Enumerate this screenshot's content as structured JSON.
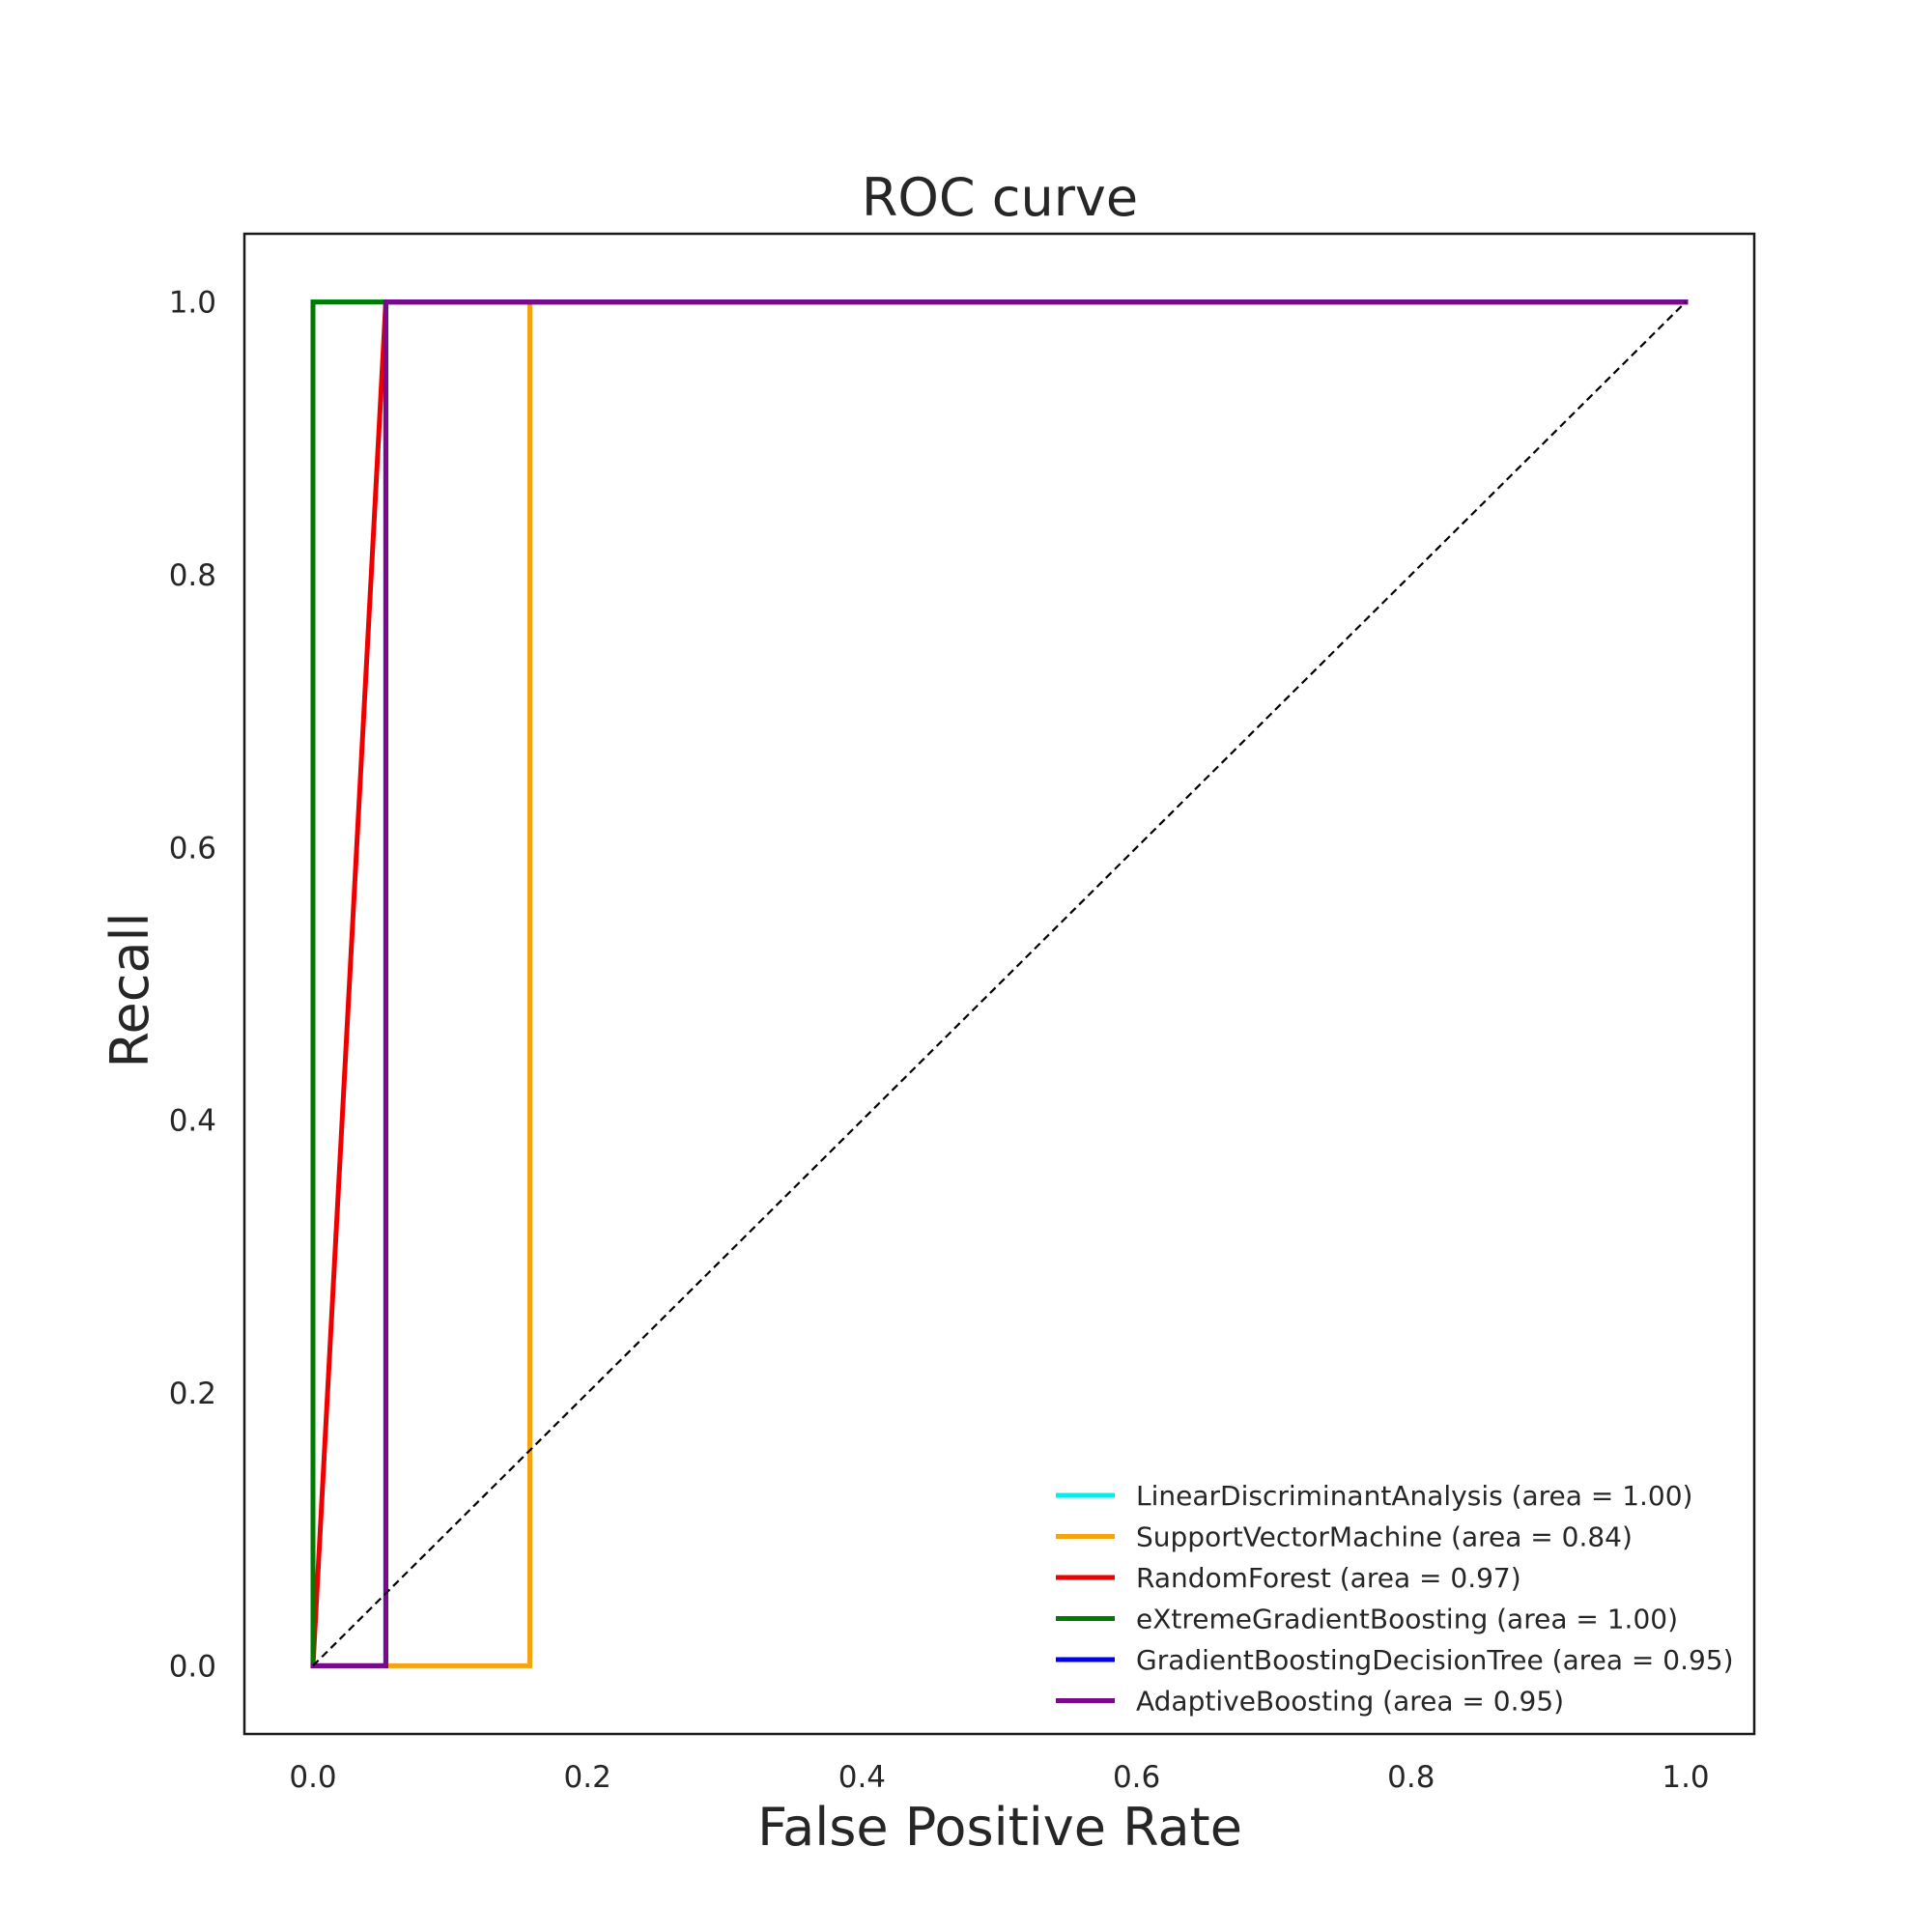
{
  "chart_data": {
    "type": "line",
    "title": "ROC curve",
    "xlabel": "False Positive Rate",
    "ylabel": "Recall",
    "xlim": [
      -0.05,
      1.05
    ],
    "ylim": [
      -0.05,
      1.05
    ],
    "xticks": [
      0.0,
      0.2,
      0.4,
      0.6,
      0.8,
      1.0
    ],
    "xtick_labels": [
      "0.0",
      "0.2",
      "0.4",
      "0.6",
      "0.8",
      "1.0"
    ],
    "yticks": [
      0.0,
      0.2,
      0.4,
      0.6,
      0.8,
      1.0
    ],
    "ytick_labels": [
      "0.0",
      "0.2",
      "0.4",
      "0.6",
      "0.8",
      "1.0"
    ],
    "grid": false,
    "legend_position": "lower-right",
    "series": [
      {
        "name": "LinearDiscriminantAnalysis (area = 1.00)",
        "color": "#00eeee",
        "x": [
          0.0,
          0.0,
          1.0
        ],
        "y": [
          0.0,
          1.0,
          1.0
        ]
      },
      {
        "name": "SupportVectorMachine (area = 0.84)",
        "color": "#f5a30f",
        "x": [
          0.0,
          0.158,
          0.158,
          1.0
        ],
        "y": [
          0.0,
          0.0,
          1.0,
          1.0
        ]
      },
      {
        "name": "RandomForest (area = 0.97)",
        "color": "#ee0000",
        "x": [
          0.0,
          0.053,
          1.0
        ],
        "y": [
          0.0,
          1.0,
          1.0
        ]
      },
      {
        "name": "eXtremeGradientBoosting (area = 1.00)",
        "color": "#007a00",
        "x": [
          0.0,
          0.0,
          1.0
        ],
        "y": [
          0.0,
          1.0,
          1.0
        ]
      },
      {
        "name": "GradientBoostingDecisionTree (area = 0.95)",
        "color": "#0000ee",
        "x": [
          0.0,
          0.053,
          0.053,
          1.0
        ],
        "y": [
          0.0,
          0.0,
          1.0,
          1.0
        ]
      },
      {
        "name": "AdaptiveBoosting (area = 0.95)",
        "color": "#7a0a8a",
        "x": [
          0.0,
          0.053,
          0.053,
          1.0
        ],
        "y": [
          0.0,
          0.0,
          1.0,
          1.0
        ]
      }
    ],
    "reference_line": {
      "color": "#000000",
      "style": "dashed",
      "x": [
        0.0,
        1.0
      ],
      "y": [
        0.0,
        1.0
      ]
    }
  }
}
